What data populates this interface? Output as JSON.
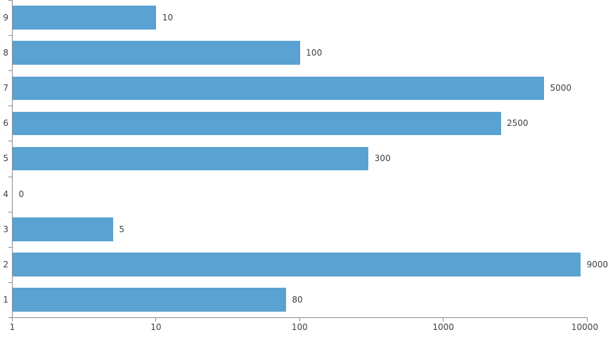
{
  "chart_data": {
    "type": "bar",
    "orientation": "horizontal",
    "x_scale": "log",
    "title": "",
    "xlabel": "",
    "ylabel": "",
    "grid": false,
    "legend": false,
    "categories": [
      "1",
      "2",
      "3",
      "4",
      "5",
      "6",
      "7",
      "8",
      "9"
    ],
    "values": [
      80,
      9000,
      5,
      0,
      300,
      2500,
      5000,
      100,
      10
    ],
    "data_labels": [
      "80",
      "9000",
      "5",
      "0",
      "300",
      "2500",
      "5000",
      "100",
      "10"
    ],
    "x_ticks": [
      "1",
      "10",
      "100",
      "1000",
      "10000"
    ],
    "xlim": [
      1,
      10000
    ],
    "bar_color": "#59A2D2",
    "axis_color": "#8C8C8C",
    "text_color": "#404040"
  }
}
